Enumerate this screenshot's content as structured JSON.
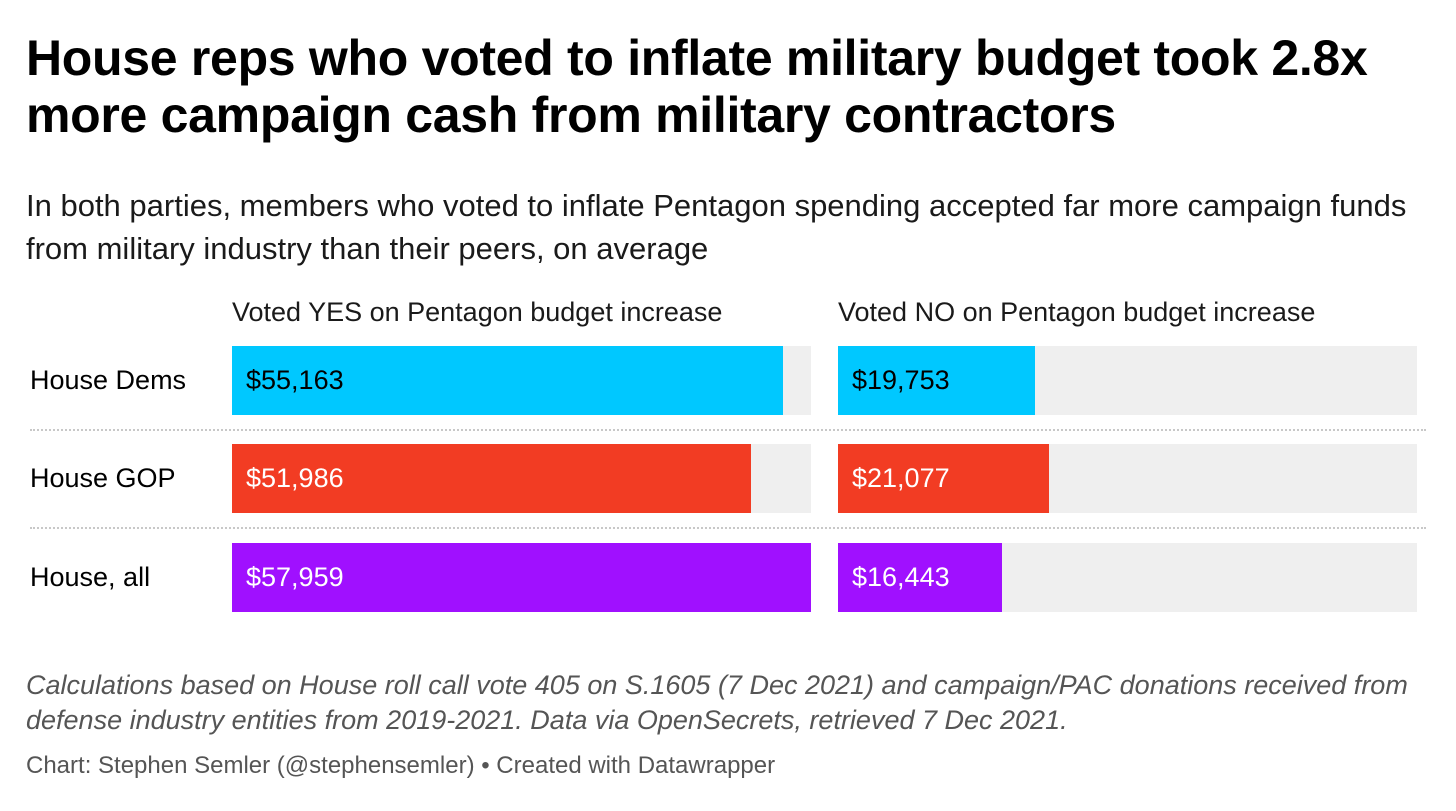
{
  "chart_data": {
    "type": "bar",
    "title": "House reps who voted to inflate military budget took 2.8x more campaign cash from military contractors",
    "subtitle": "In both parties, members who voted to inflate Pentagon spending accepted far more campaign funds from military industry than their peers, on average",
    "columns": [
      "Voted YES on Pentagon budget increase",
      "Voted NO on Pentagon budget increase"
    ],
    "categories": [
      "House Dems",
      "House GOP",
      "House, all"
    ],
    "series": [
      {
        "name": "Voted YES on Pentagon budget increase",
        "values": [
          55163,
          51986,
          57959
        ],
        "labels": [
          "$55,163",
          "$51,986",
          "$57,959"
        ]
      },
      {
        "name": "Voted NO on Pentagon budget increase",
        "values": [
          19753,
          21077,
          16443
        ],
        "labels": [
          "$19,753",
          "$21,077",
          "$16,443"
        ]
      }
    ],
    "xlim": [
      0,
      57959
    ],
    "colors": [
      "#00c8ff",
      "#f23c23",
      "#a010ff"
    ],
    "track_color": "#efefef",
    "notes": "Calculations based on House roll call vote 405 on S.1605 (7 Dec 2021) and campaign/PAC donations received from defense industry entities from 2019-2021. Data via OpenSecrets, retrieved 7 Dec 2021.",
    "footer": "Chart: Stephen Semler (@stephensemler) • Created with Datawrapper"
  }
}
